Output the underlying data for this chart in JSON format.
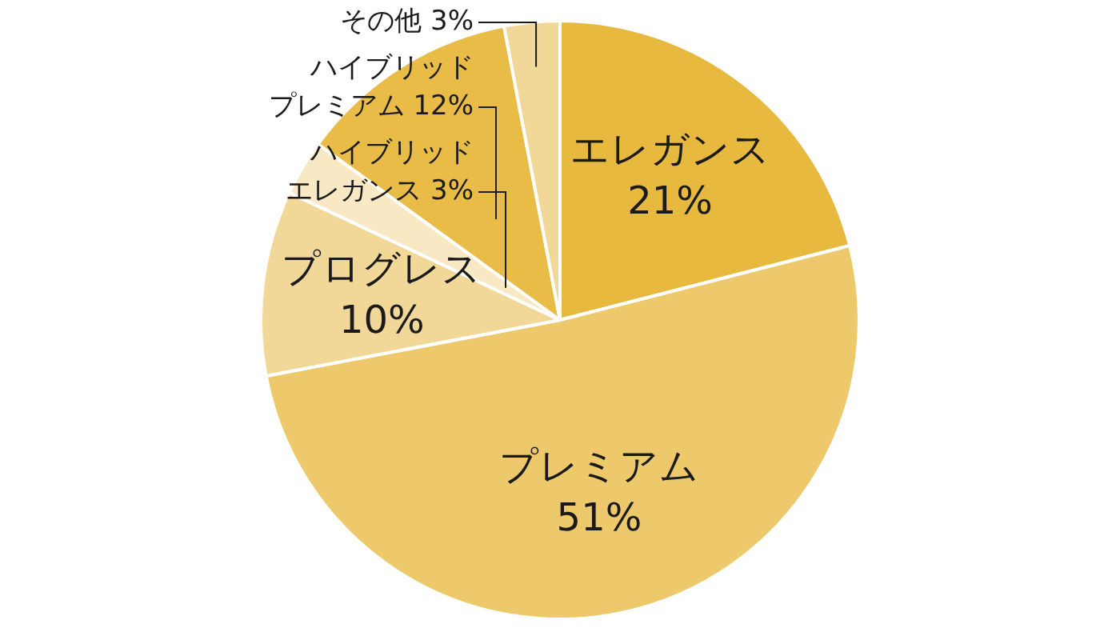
{
  "chart_data": {
    "type": "pie",
    "categories": [
      "エレガンス",
      "プレミアム",
      "プログレス",
      "ハイブリッドエレガンス",
      "ハイブリッドプレミアム",
      "その他"
    ],
    "values": [
      21,
      51,
      10,
      3,
      12,
      3
    ],
    "value_labels": [
      "21%",
      "51%",
      "10%",
      "3%",
      "12%",
      "3%"
    ],
    "colors": [
      "#e8b93f",
      "#edc96c",
      "#f2d898",
      "#f8e8c4",
      "#e8bc47",
      "#f2d898"
    ]
  }
}
